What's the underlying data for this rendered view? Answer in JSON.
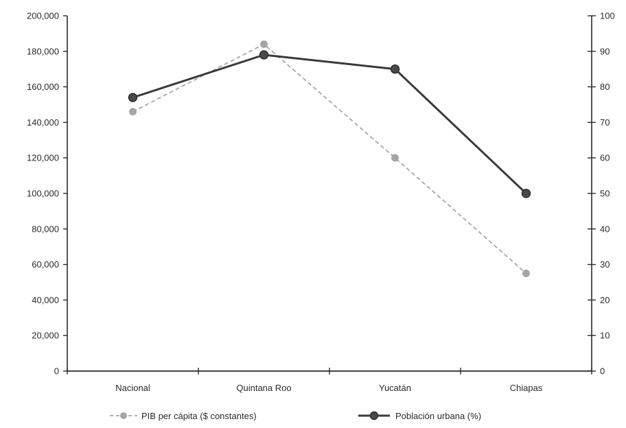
{
  "chart_data": {
    "type": "line",
    "categories": [
      "Nacional",
      "Quintana Roo",
      "Yucatán",
      "Chiapas"
    ],
    "y_left": {
      "range": [
        0,
        200000
      ],
      "ticks": [
        "0",
        "20,000",
        "40,000",
        "60,000",
        "80,000",
        "100,000",
        "120,000",
        "140,000",
        "160,000",
        "180,000",
        "200,000"
      ]
    },
    "y_right": {
      "range": [
        0,
        100
      ],
      "ticks": [
        "0",
        "10",
        "20",
        "30",
        "40",
        "50",
        "60",
        "70",
        "80",
        "90",
        "100"
      ]
    },
    "series": [
      {
        "name": "PIB per cápita ($ constantes)",
        "axis": "left",
        "style": "dashed",
        "marker_color": "#a6a6a6",
        "line_color": "#a6a6a6",
        "values": [
          146000,
          184000,
          120000,
          55000
        ]
      },
      {
        "name": "Población urbana (%)",
        "axis": "right",
        "style": "solid",
        "marker_color": "#4a4a4a",
        "line_color": "#3a3a3a",
        "values": [
          77,
          89,
          85,
          50
        ]
      }
    ],
    "legend_position": "bottom",
    "grid": false
  }
}
